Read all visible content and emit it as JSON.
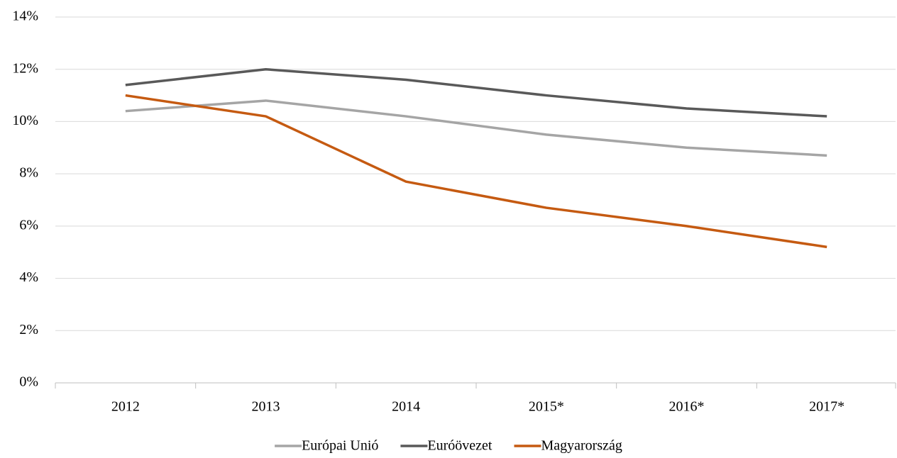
{
  "chart_data": {
    "type": "line",
    "categories": [
      "2012",
      "2013",
      "2014",
      "2015*",
      "2016*",
      "2017*"
    ],
    "series": [
      {
        "name": "Európai Unió",
        "color": "#a5a5a5",
        "values": [
          10.4,
          10.8,
          10.2,
          9.5,
          9.0,
          8.7
        ]
      },
      {
        "name": "Euróövezet",
        "color": "#595959",
        "values": [
          11.4,
          12.0,
          11.6,
          11.0,
          10.5,
          10.2
        ]
      },
      {
        "name": "Magyarország",
        "color": "#c55a11",
        "values": [
          11.0,
          10.2,
          7.7,
          6.7,
          6.0,
          5.2
        ]
      }
    ],
    "ylim": [
      0,
      14
    ],
    "yticks": [
      {
        "value": 0,
        "label": "0%"
      },
      {
        "value": 2,
        "label": "2%"
      },
      {
        "value": 4,
        "label": "4%"
      },
      {
        "value": 6,
        "label": "6%"
      },
      {
        "value": 8,
        "label": "8%"
      },
      {
        "value": 10,
        "label": "10%"
      },
      {
        "value": 12,
        "label": "12%"
      },
      {
        "value": 14,
        "label": "14%"
      }
    ],
    "grid": true,
    "legend": "bottom"
  }
}
